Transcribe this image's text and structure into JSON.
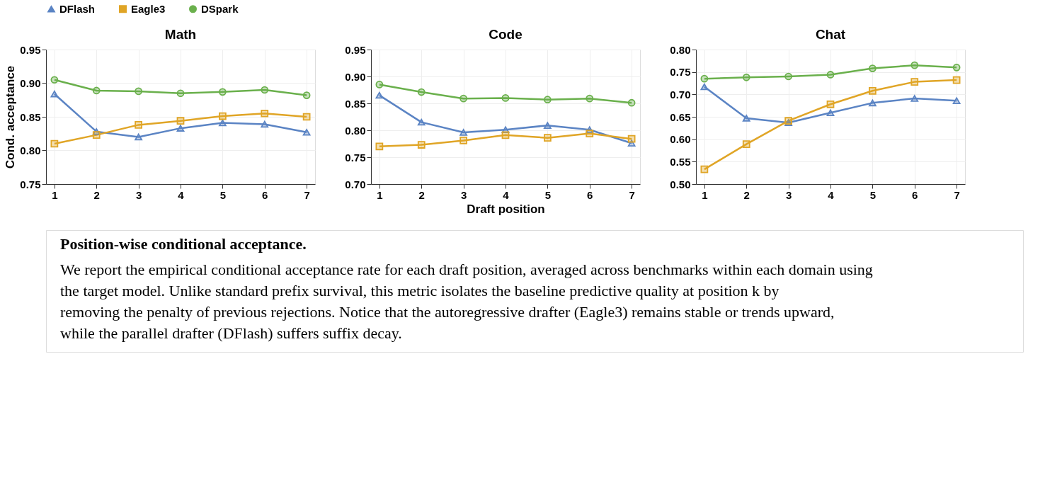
{
  "chart_data": [
    {
      "type": "line",
      "title": "Math",
      "ylabel": "Cond. acceptance",
      "x": [
        1,
        2,
        3,
        4,
        5,
        6,
        7
      ],
      "xlim": [
        0.8,
        7.2
      ],
      "xticks": [
        1,
        2,
        3,
        4,
        5,
        6,
        7
      ],
      "ylim": [
        0.75,
        0.95
      ],
      "yticks": [
        0.75,
        {
          "value": 0.8,
          "label": "0.80"
        },
        0.85,
        {
          "value": 0.9,
          "label": "0.90"
        },
        0.95
      ],
      "grid": true,
      "legend": "top",
      "series": [
        {
          "name": "DFlash",
          "color": "#5b84c4",
          "marker": "triangle",
          "values": [
            0.884,
            0.828,
            0.82,
            0.833,
            0.841,
            0.839,
            0.827
          ]
        },
        {
          "name": "Eagle3",
          "color": "#e0a526",
          "marker": "square",
          "values": [
            0.81,
            0.823,
            0.838,
            0.844,
            0.851,
            0.855,
            0.85
          ]
        },
        {
          "name": "DSpark",
          "color": "#6ab04c",
          "marker": "circle",
          "values": [
            0.905,
            0.889,
            0.888,
            0.885,
            0.887,
            0.89,
            0.882
          ]
        }
      ],
      "annotations": [
        "Position-wise conditional acceptance.",
        "We report the empirical conditional acceptance rate for each draft position, averaged across benchmarks within each domain using the target model. Unlike standard prefix survival, this metric isolates the baseline predictive quality at position k by removing the penalty of previous rejections. Notice that the autoregressive drafter (Eagle3) remains stable or trends upward, while the parallel drafter (DFlash) suffers suffix decay."
      ]
    },
    {
      "type": "line",
      "title": "Code",
      "xlabel": "Draft position",
      "x": [
        1,
        2,
        3,
        4,
        5,
        6,
        7
      ],
      "xlim": [
        0.8,
        7.2
      ],
      "xticks": [
        1,
        2,
        3,
        4,
        5,
        6,
        7
      ],
      "ylim": [
        0.7,
        0.95
      ],
      "yticks": [
        {
          "value": 0.7,
          "label": "0.70"
        },
        0.75,
        {
          "value": 0.8,
          "label": "0.80"
        },
        0.85,
        {
          "value": 0.9,
          "label": "0.90"
        },
        0.95
      ],
      "grid": true,
      "series": [
        {
          "name": "DFlash",
          "color": "#5b84c4",
          "marker": "triangle",
          "values": [
            0.865,
            0.815,
            0.796,
            0.801,
            0.809,
            0.801,
            0.776
          ]
        },
        {
          "name": "Eagle3",
          "color": "#e0a526",
          "marker": "square",
          "values": [
            0.77,
            0.773,
            0.781,
            0.791,
            0.786,
            0.794,
            0.784
          ]
        },
        {
          "name": "DSpark",
          "color": "#6ab04c",
          "marker": "circle",
          "values": [
            0.885,
            0.871,
            0.859,
            0.86,
            0.857,
            0.859,
            0.851
          ]
        }
      ]
    },
    {
      "type": "line",
      "title": "Chat",
      "x": [
        1,
        2,
        3,
        4,
        5,
        6,
        7
      ],
      "xlim": [
        0.8,
        7.2
      ],
      "xticks": [
        1,
        2,
        3,
        4,
        5,
        6,
        7
      ],
      "ylim": [
        0.5,
        0.8
      ],
      "yticks": [
        {
          "value": 0.5,
          "label": "0.50"
        },
        0.55,
        {
          "value": 0.6,
          "label": "0.60"
        },
        0.65,
        {
          "value": 0.7,
          "label": "0.70"
        },
        0.75,
        {
          "value": 0.8,
          "label": "0.80"
        }
      ],
      "grid": true,
      "series": [
        {
          "name": "DFlash",
          "color": "#5b84c4",
          "marker": "triangle",
          "values": [
            0.717,
            0.647,
            0.637,
            0.659,
            0.681,
            0.691,
            0.686
          ]
        },
        {
          "name": "Eagle3",
          "color": "#e0a526",
          "marker": "square",
          "values": [
            0.533,
            0.589,
            0.641,
            0.678,
            0.708,
            0.728,
            0.732
          ]
        },
        {
          "name": "DSpark",
          "color": "#6ab04c",
          "marker": "circle",
          "values": [
            0.735,
            0.738,
            0.74,
            0.744,
            0.758,
            0.765,
            0.76
          ]
        }
      ]
    }
  ]
}
